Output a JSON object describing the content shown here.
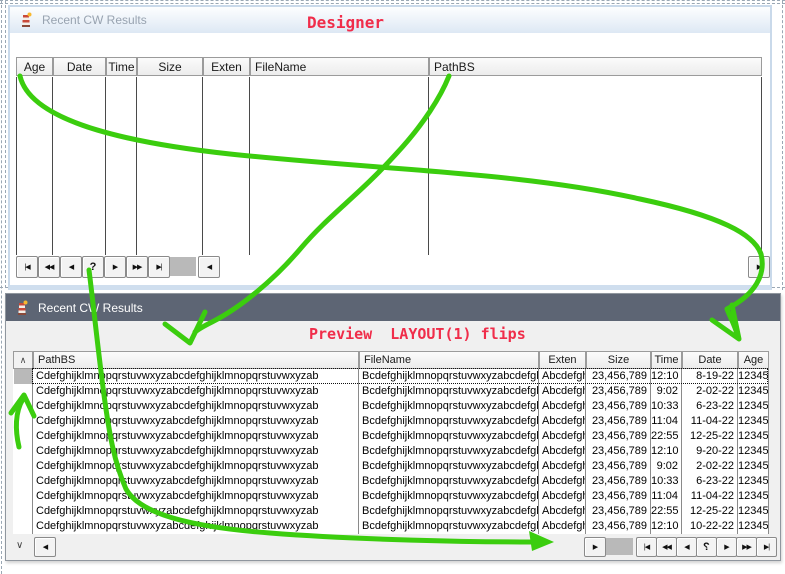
{
  "designer_window": {
    "icon": "lighthouse-icon",
    "title": "Recent CW Results",
    "annotation": "Designer",
    "grid": {
      "columns": [
        "Age",
        "Date",
        "Time",
        "Size",
        "Exten",
        "FileName",
        "PathBS"
      ]
    },
    "nav": {
      "vcr_buttons": [
        "|◀",
        "◀◀",
        "◀",
        "?",
        "▶",
        "▶▶",
        "▶|"
      ],
      "scroll_left": "◀",
      "scroll_right": "▶"
    }
  },
  "preview_window": {
    "icon": "lighthouse-icon",
    "title": "Recent CW Results",
    "annotation": "Preview  LAYOUT(1) flips",
    "grid": {
      "vscroll_up": "∧",
      "vscroll_down": "∨",
      "columns": [
        "PathBS",
        "FileName",
        "Exten",
        "Size",
        "Time",
        "Date",
        "Age"
      ],
      "rows": [
        {
          "PathBS": "Cdefghijklmnopqrstuvwxyzabcdefghijklmnopqrstuvwxyzab",
          "FileName": "Bcdefghijklmnopqrstuvwxyzabcdefghijklmnopqrstuvwxyzab",
          "Exten": "Abcdefghij",
          "Size": "23,456,789",
          "Time": "12:10",
          "Date": "8-19-22",
          "Age": "12345"
        },
        {
          "PathBS": "Cdefghijklmnopqrstuvwxyzabcdefghijklmnopqrstuvwxyzab",
          "FileName": "Bcdefghijklmnopqrstuvwxyzabcdefghijklmnopqrstuvwxyzab",
          "Exten": "Abcdefghij",
          "Size": "23,456,789",
          "Time": "9:02",
          "Date": "2-02-22",
          "Age": "12345"
        },
        {
          "PathBS": "Cdefghijklmnopqrstuvwxyzabcdefghijklmnopqrstuvwxyzab",
          "FileName": "Bcdefghijklmnopqrstuvwxyzabcdefghijklmnopqrstuvwxyzab",
          "Exten": "Abcdefghij",
          "Size": "23,456,789",
          "Time": "10:33",
          "Date": "6-23-22",
          "Age": "12345"
        },
        {
          "PathBS": "Cdefghijklmnopqrstuvwxyzabcdefghijklmnopqrstuvwxyzab",
          "FileName": "Bcdefghijklmnopqrstuvwxyzabcdefghijklmnopqrstuvwxyzab",
          "Exten": "Abcdefghij",
          "Size": "23,456,789",
          "Time": "11:04",
          "Date": "11-04-22",
          "Age": "12345"
        },
        {
          "PathBS": "Cdefghijklmnopqrstuvwxyzabcdefghijklmnopqrstuvwxyzab",
          "FileName": "Bcdefghijklmnopqrstuvwxyzabcdefghijklmnopqrstuvwxyzab",
          "Exten": "Abcdefghij",
          "Size": "23,456,789",
          "Time": "22:55",
          "Date": "12-25-22",
          "Age": "12345"
        },
        {
          "PathBS": "Cdefghijklmnopqrstuvwxyzabcdefghijklmnopqrstuvwxyzab",
          "FileName": "Bcdefghijklmnopqrstuvwxyzabcdefghijklmnopqrstuvwxyzab",
          "Exten": "Abcdefghij",
          "Size": "23,456,789",
          "Time": "12:10",
          "Date": "9-20-22",
          "Age": "12345"
        },
        {
          "PathBS": "Cdefghijklmnopqrstuvwxyzabcdefghijklmnopqrstuvwxyzab",
          "FileName": "Bcdefghijklmnopqrstuvwxyzabcdefghijklmnopqrstuvwxyzab",
          "Exten": "Abcdefghij",
          "Size": "23,456,789",
          "Time": "9:02",
          "Date": "2-02-22",
          "Age": "12345"
        },
        {
          "PathBS": "Cdefghijklmnopqrstuvwxyzabcdefghijklmnopqrstuvwxyzab",
          "FileName": "Bcdefghijklmnopqrstuvwxyzabcdefghijklmnopqrstuvwxyzab",
          "Exten": "Abcdefghij",
          "Size": "23,456,789",
          "Time": "10:33",
          "Date": "6-23-22",
          "Age": "12345"
        },
        {
          "PathBS": "Cdefghijklmnopqrstuvwxyzabcdefghijklmnopqrstuvwxyzab",
          "FileName": "Bcdefghijklmnopqrstuvwxyzabcdefghijklmnopqrstuvwxyzab",
          "Exten": "Abcdefghij",
          "Size": "23,456,789",
          "Time": "11:04",
          "Date": "11-04-22",
          "Age": "12345"
        },
        {
          "PathBS": "Cdefghijklmnopqrstuvwxyzabcdefghijklmnopqrstuvwxyzab",
          "FileName": "Bcdefghijklmnopqrstuvwxyzabcdefghijklmnopqrstuvwxyzab",
          "Exten": "Abcdefghij",
          "Size": "23,456,789",
          "Time": "22:55",
          "Date": "12-25-22",
          "Age": "12345"
        },
        {
          "PathBS": "Cdefghijklmnopqrstuvwxyzabcdefghijklmnopqrstuvwxyzab",
          "FileName": "Bcdefghijklmnopqrstuvwxyzabcdefghijklmnopqrstuvwxyzab",
          "Exten": "Abcdefghij",
          "Size": "23,456,789",
          "Time": "12:10",
          "Date": "10-22-22",
          "Age": "12345"
        }
      ]
    },
    "nav": {
      "scroll_left": "◀",
      "scroll_right": "▶",
      "vcr_buttons": [
        "|◀",
        "◀◀",
        "◀",
        "?",
        "▶",
        "▶▶",
        "▶|"
      ],
      "mirrored_button_index": 3
    }
  },
  "colors": {
    "annotation_red": "#f02d4a",
    "annotation_green": "#3bcd0e",
    "preview_titlebar": "#5d6574",
    "designer_title_text": "#98a3b0"
  }
}
